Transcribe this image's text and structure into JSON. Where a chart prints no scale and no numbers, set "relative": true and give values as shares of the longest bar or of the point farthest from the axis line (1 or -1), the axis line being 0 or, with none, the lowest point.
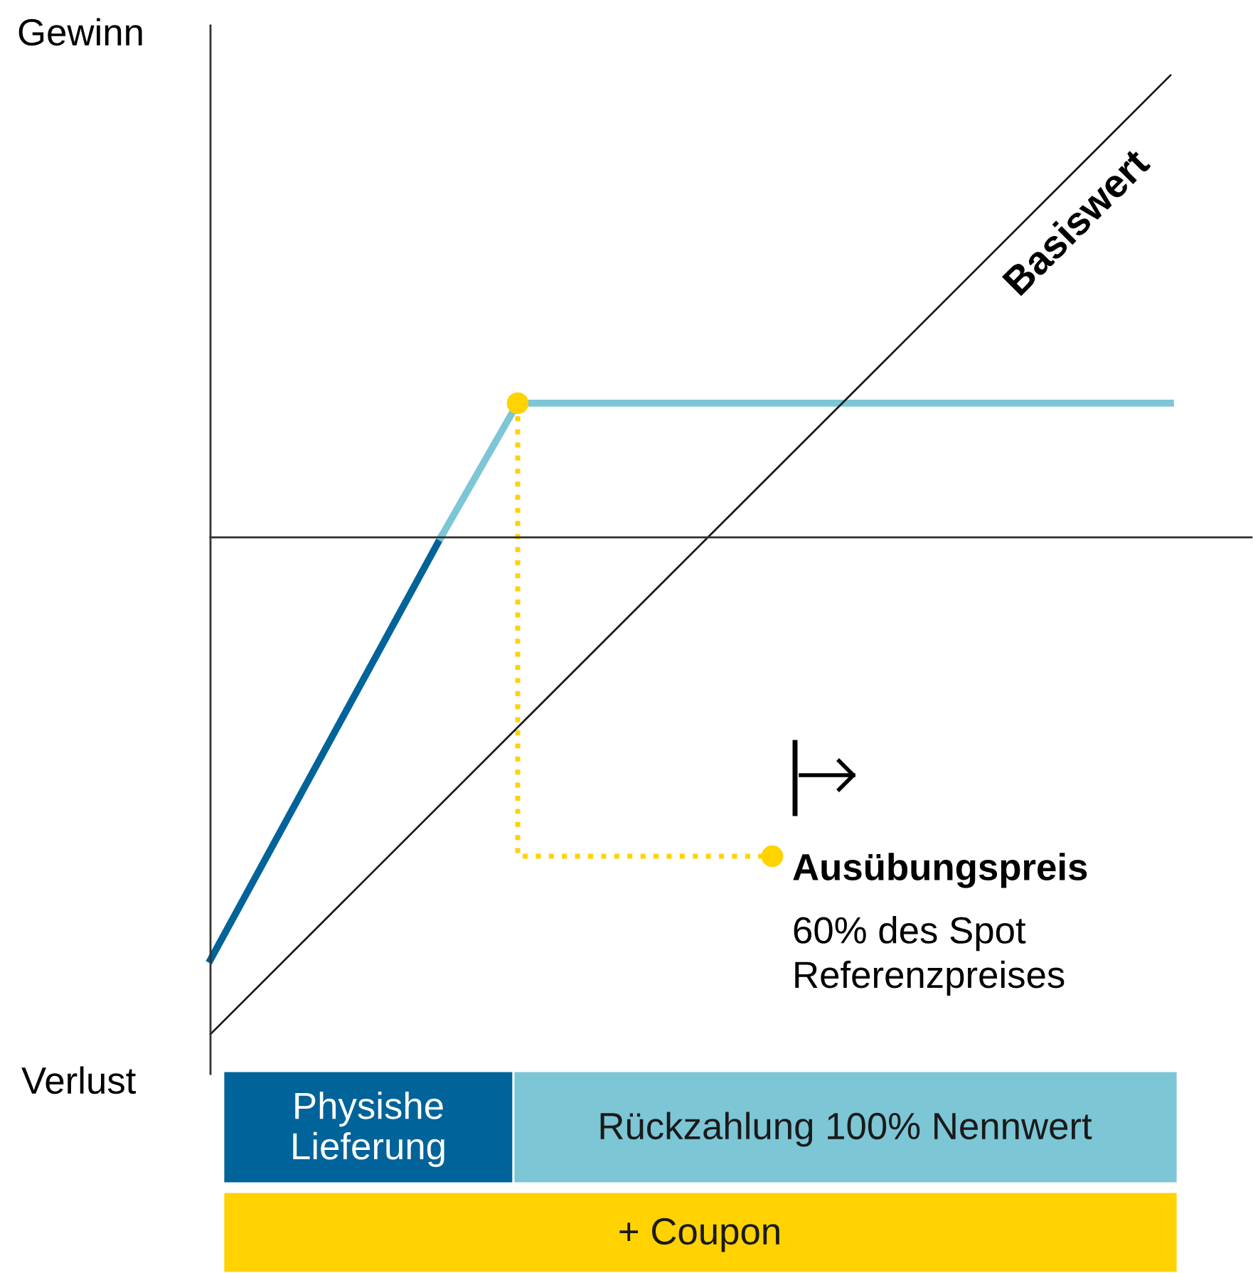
{
  "chart_data": {
    "type": "line",
    "relative": true,
    "grid": false,
    "categories": [
      null,
      null,
      null,
      null,
      null,
      null,
      null,
      null,
      null,
      null,
      null,
      null,
      null,
      null,
      null,
      null,
      null,
      null,
      null,
      null,
      null,
      null,
      null,
      null,
      null,
      null
    ],
    "series": [
      {
        "color": "#00639a",
        "values": [
          -0.85,
          null,
          null,
          null,
          null,
          null,
          0.0,
          null,
          null,
          null,
          null,
          null,
          null,
          null,
          null,
          null,
          null,
          null,
          null,
          null,
          null,
          null,
          null,
          null,
          null,
          null
        ]
      },
      {
        "color": "#7cc6d6",
        "values": [
          null,
          null,
          null,
          null,
          null,
          null,
          0.0,
          null,
          0.27,
          null,
          null,
          null,
          null,
          null,
          null,
          null,
          null,
          null,
          null,
          null,
          null,
          null,
          null,
          null,
          null,
          0.27
        ]
      },
      {
        "color": "#1a1a1a",
        "values": [
          -1.0,
          null,
          null,
          null,
          null,
          null,
          null,
          null,
          null,
          null,
          null,
          null,
          null,
          null,
          null,
          null,
          null,
          null,
          null,
          null,
          null,
          null,
          null,
          null,
          null,
          0.93
        ]
      }
    ],
    "annotations": [
      "Gewinn",
      "Verlust",
      "Basiswert",
      "Ausübungspreis",
      "60% des Spot\nReferenzpreises",
      "Physishe\nLieferung",
      "Rückzahlung 100% Nennwert",
      "+ Coupon"
    ]
  }
}
